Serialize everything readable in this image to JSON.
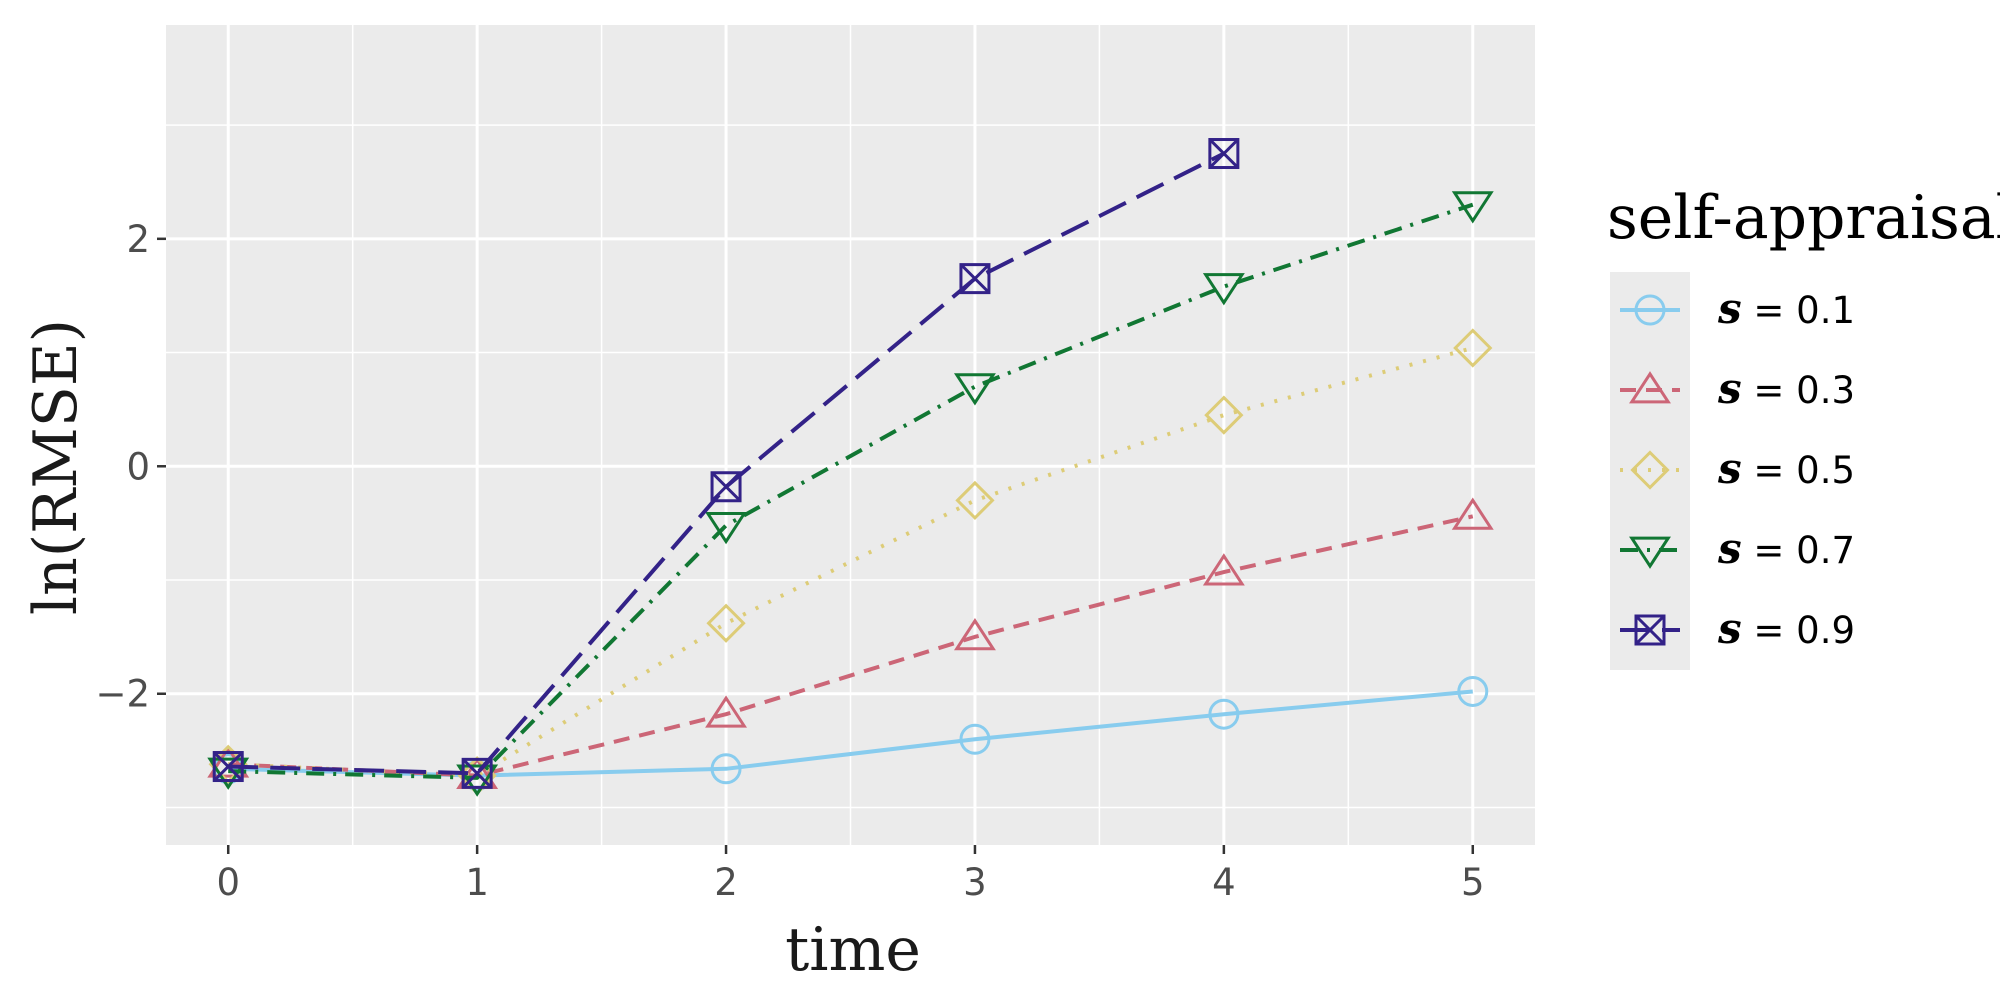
{
  "chart_data": {
    "type": "line",
    "xlabel": "time",
    "ylabel": "ln(RMSE)",
    "x": [
      0,
      1,
      2,
      3,
      4,
      5
    ],
    "x_ticks": [
      "0",
      "1",
      "2",
      "3",
      "4",
      "5"
    ],
    "y_ticks": [
      "−2",
      "0",
      "2"
    ],
    "xlim": [
      -0.25,
      5.25
    ],
    "ylim": [
      -3.33,
      3.88
    ],
    "grid": true,
    "legend": {
      "title": "self-appraisal",
      "position": "right",
      "var": "s",
      "eq": " = "
    },
    "series": [
      {
        "name": "0.1",
        "color": "#88CCEE",
        "marker": "circle",
        "dash": "solid",
        "x": [
          0,
          1,
          2,
          3,
          4,
          5
        ],
        "values": [
          -2.66,
          -2.72,
          -2.66,
          -2.4,
          -2.18,
          -1.98
        ]
      },
      {
        "name": "0.3",
        "color": "#CC6677",
        "marker": "triangle-up",
        "dash": "dashed",
        "x": [
          0,
          1,
          2,
          3,
          4,
          5
        ],
        "values": [
          -2.62,
          -2.72,
          -2.18,
          -1.5,
          -0.93,
          -0.44
        ]
      },
      {
        "name": "0.5",
        "color": "#DDCC77",
        "marker": "diamond",
        "dash": "dotted",
        "x": [
          0,
          1,
          2,
          3,
          4,
          5
        ],
        "values": [
          -2.62,
          -2.72,
          -1.38,
          -0.3,
          0.45,
          1.04
        ]
      },
      {
        "name": "0.7",
        "color": "#117733",
        "marker": "triangle-down",
        "dash": "dotdash",
        "x": [
          0,
          1,
          2,
          3,
          4,
          5
        ],
        "values": [
          -2.68,
          -2.74,
          -0.52,
          0.7,
          1.58,
          2.3
        ]
      },
      {
        "name": "0.9",
        "color": "#332288",
        "marker": "square-x",
        "dash": "longdash",
        "x": [
          0,
          1,
          2,
          3,
          4
        ],
        "values": [
          -2.64,
          -2.7,
          -0.18,
          1.65,
          2.75
        ]
      }
    ]
  }
}
